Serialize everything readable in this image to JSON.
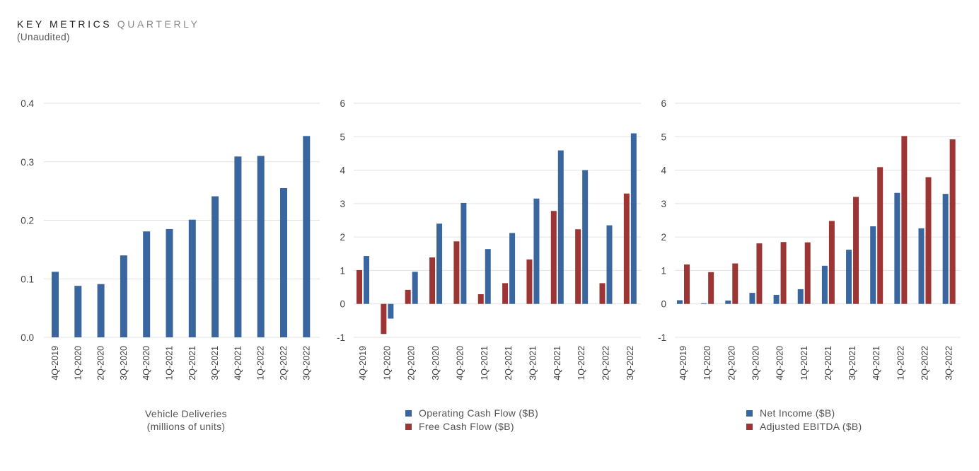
{
  "header": {
    "title_main": "KEY METRICS",
    "title_sub": "QUARTERLY",
    "note": "(Unaudited)"
  },
  "colors": {
    "blue": "#3a66a0",
    "red": "#9e3535",
    "grid": "#e3e3e3"
  },
  "chart_data": [
    {
      "type": "bar",
      "categories": [
        "4Q-2019",
        "1Q-2020",
        "2Q-2020",
        "3Q-2020",
        "4Q-2020",
        "1Q-2021",
        "2Q-2021",
        "3Q-2021",
        "4Q-2021",
        "1Q-2022",
        "2Q-2022",
        "3Q-2022"
      ],
      "series": [
        {
          "name": "Vehicle Deliveries",
          "color": "blue",
          "values": [
            0.112,
            0.088,
            0.091,
            0.14,
            0.181,
            0.185,
            0.201,
            0.241,
            0.309,
            0.31,
            0.255,
            0.344
          ]
        }
      ],
      "ylim": [
        0,
        0.4
      ],
      "yticks": [
        "0.0",
        "0.1",
        "0.2",
        "0.3",
        "0.4"
      ],
      "caption": [
        "Vehicle Deliveries",
        "(millions of units)"
      ]
    },
    {
      "type": "bar",
      "categories": [
        "4Q-2019",
        "1Q-2020",
        "2Q-2020",
        "3Q-2020",
        "4Q-2020",
        "1Q-2021",
        "2Q-2021",
        "3Q-2021",
        "4Q-2021",
        "1Q-2022",
        "2Q-2022",
        "3Q-2022"
      ],
      "series": [
        {
          "name": "Free Cash Flow ($B)",
          "color": "red",
          "values": [
            1.01,
            -0.9,
            0.42,
            1.39,
            1.87,
            0.29,
            0.62,
            1.33,
            2.78,
            2.23,
            0.62,
            3.3
          ]
        },
        {
          "name": "Operating Cash Flow ($B)",
          "color": "blue",
          "values": [
            1.43,
            -0.44,
            0.96,
            2.4,
            3.02,
            1.64,
            2.12,
            3.15,
            4.59,
            4.0,
            2.35,
            5.1
          ]
        }
      ],
      "ylim": [
        -1,
        6
      ],
      "yticks": [
        "-1",
        "0",
        "1",
        "2",
        "3",
        "4",
        "5",
        "6"
      ],
      "legend": [
        "Operating Cash Flow ($B)",
        "Free Cash Flow ($B)"
      ]
    },
    {
      "type": "bar",
      "categories": [
        "4Q-2019",
        "1Q-2020",
        "2Q-2020",
        "3Q-2020",
        "4Q-2020",
        "1Q-2021",
        "2Q-2021",
        "3Q-2021",
        "4Q-2021",
        "1Q-2022",
        "2Q-2022",
        "3Q-2022"
      ],
      "series": [
        {
          "name": "Net Income ($B)",
          "color": "blue",
          "values": [
            0.11,
            0.02,
            0.1,
            0.33,
            0.27,
            0.44,
            1.14,
            1.62,
            2.32,
            3.32,
            2.26,
            3.29
          ]
        },
        {
          "name": "Adjusted EBITDA ($B)",
          "color": "red",
          "values": [
            1.18,
            0.95,
            1.21,
            1.81,
            1.85,
            1.84,
            2.48,
            3.2,
            4.09,
            5.02,
            3.79,
            4.92
          ]
        }
      ],
      "ylim": [
        -1,
        6
      ],
      "yticks": [
        "-1",
        "0",
        "1",
        "2",
        "3",
        "4",
        "5",
        "6"
      ],
      "legend": [
        "Net Income ($B)",
        "Adjusted EBITDA ($B)"
      ]
    }
  ]
}
